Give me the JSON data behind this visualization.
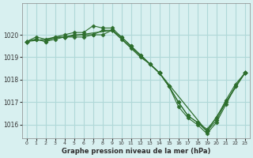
{
  "background_color": "#d8f0f0",
  "grid_color": "#b0d8d8",
  "line_color": "#2d6e2d",
  "xlabel": "Graphe pression niveau de la mer (hPa)",
  "ylim": [
    1015.4,
    1021.4
  ],
  "xlim": [
    -0.5,
    23.5
  ],
  "yticks": [
    1016,
    1017,
    1018,
    1019,
    1020
  ],
  "xticks": [
    0,
    1,
    2,
    3,
    4,
    5,
    6,
    7,
    8,
    9,
    10,
    11,
    12,
    13,
    14,
    15,
    16,
    17,
    18,
    19,
    20,
    21,
    22,
    23
  ],
  "series": [
    {
      "x": [
        0,
        1,
        2,
        3,
        4,
        5,
        6,
        7,
        8,
        9,
        10,
        11,
        12,
        13,
        14,
        15,
        16,
        17,
        18,
        19,
        20,
        21,
        22,
        23
      ],
      "y": [
        1019.7,
        1019.9,
        1019.8,
        1019.9,
        1020.0,
        1020.1,
        1020.1,
        1020.4,
        1020.3,
        1020.3,
        1019.9,
        1019.5,
        1019.1,
        1018.7,
        1018.3,
        1017.7,
        1017.0,
        1016.4,
        1016.1,
        1015.8,
        1016.3,
        1017.1,
        1017.8,
        1018.3
      ]
    },
    {
      "x": [
        0,
        1,
        2,
        3,
        4,
        5,
        6,
        7,
        8,
        9,
        10,
        11,
        12,
        13,
        14,
        15,
        16,
        17,
        18,
        19,
        20,
        21,
        22,
        23
      ],
      "y": [
        1019.7,
        1019.8,
        1019.7,
        1019.9,
        1019.9,
        1020.0,
        1020.0,
        1020.0,
        1020.2,
        1020.2,
        1019.9,
        1019.5,
        1019.1,
        1018.7,
        1018.3,
        1017.7,
        1017.0,
        1016.4,
        1016.1,
        1015.7,
        1016.2,
        1017.0,
        1017.7,
        1018.3
      ]
    },
    {
      "x": [
        0,
        1,
        2,
        3,
        4,
        5,
        6,
        7,
        8,
        9,
        10,
        11,
        12,
        13,
        14,
        15,
        16,
        17,
        18,
        19,
        20,
        21,
        22,
        23
      ],
      "y": [
        1019.7,
        1019.8,
        1019.7,
        1019.8,
        1019.9,
        1019.9,
        1019.9,
        1020.0,
        1020.0,
        1020.2,
        1019.8,
        1019.4,
        1019.0,
        1018.7,
        1018.3,
        1017.7,
        1016.8,
        1016.3,
        1016.0,
        1015.6,
        1016.1,
        1016.9,
        1017.7,
        1018.3
      ]
    },
    {
      "x": [
        0,
        4,
        9,
        14,
        19,
        23
      ],
      "y": [
        1019.7,
        1019.9,
        1020.2,
        1018.3,
        1015.7,
        1018.3
      ]
    }
  ]
}
